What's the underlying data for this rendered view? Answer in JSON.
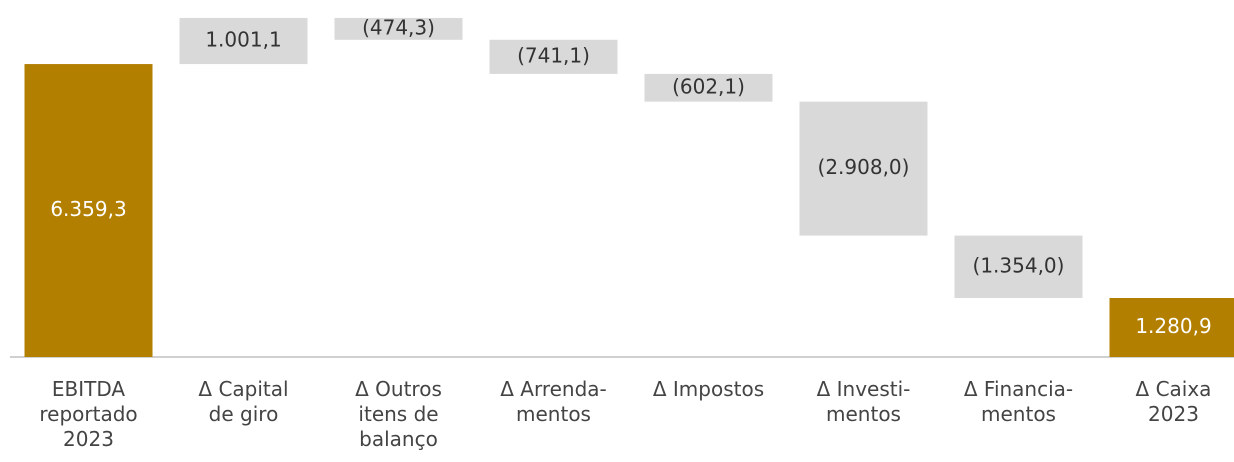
{
  "chart_data": {
    "type": "waterfall",
    "categories": [
      [
        "EBITDA",
        "reportado",
        "2023"
      ],
      [
        "Δ Capital",
        "de giro"
      ],
      [
        "Δ Outros",
        "itens de",
        "balanço"
      ],
      [
        "Δ Arrenda-",
        "mentos"
      ],
      [
        "Δ Impostos"
      ],
      [
        "Δ Investi-",
        "mentos"
      ],
      [
        "Δ Financia-",
        "mentos"
      ],
      [
        "Δ Caixa",
        "2023"
      ]
    ],
    "values": [
      6359.3,
      1001.1,
      -474.3,
      -741.1,
      -602.1,
      -2908.0,
      -1354.0,
      1280.9
    ],
    "value_labels": [
      "6.359,3",
      "1.001,1",
      "(474,3)",
      "(741,1)",
      "(602,1)",
      "(2.908,0)",
      "(1.354,0)",
      "1.280,9"
    ],
    "totals": [
      0,
      7
    ],
    "total_color": "#b27f00",
    "delta_color": "#d9d9d9",
    "ylim": [
      0,
      7750
    ]
  }
}
